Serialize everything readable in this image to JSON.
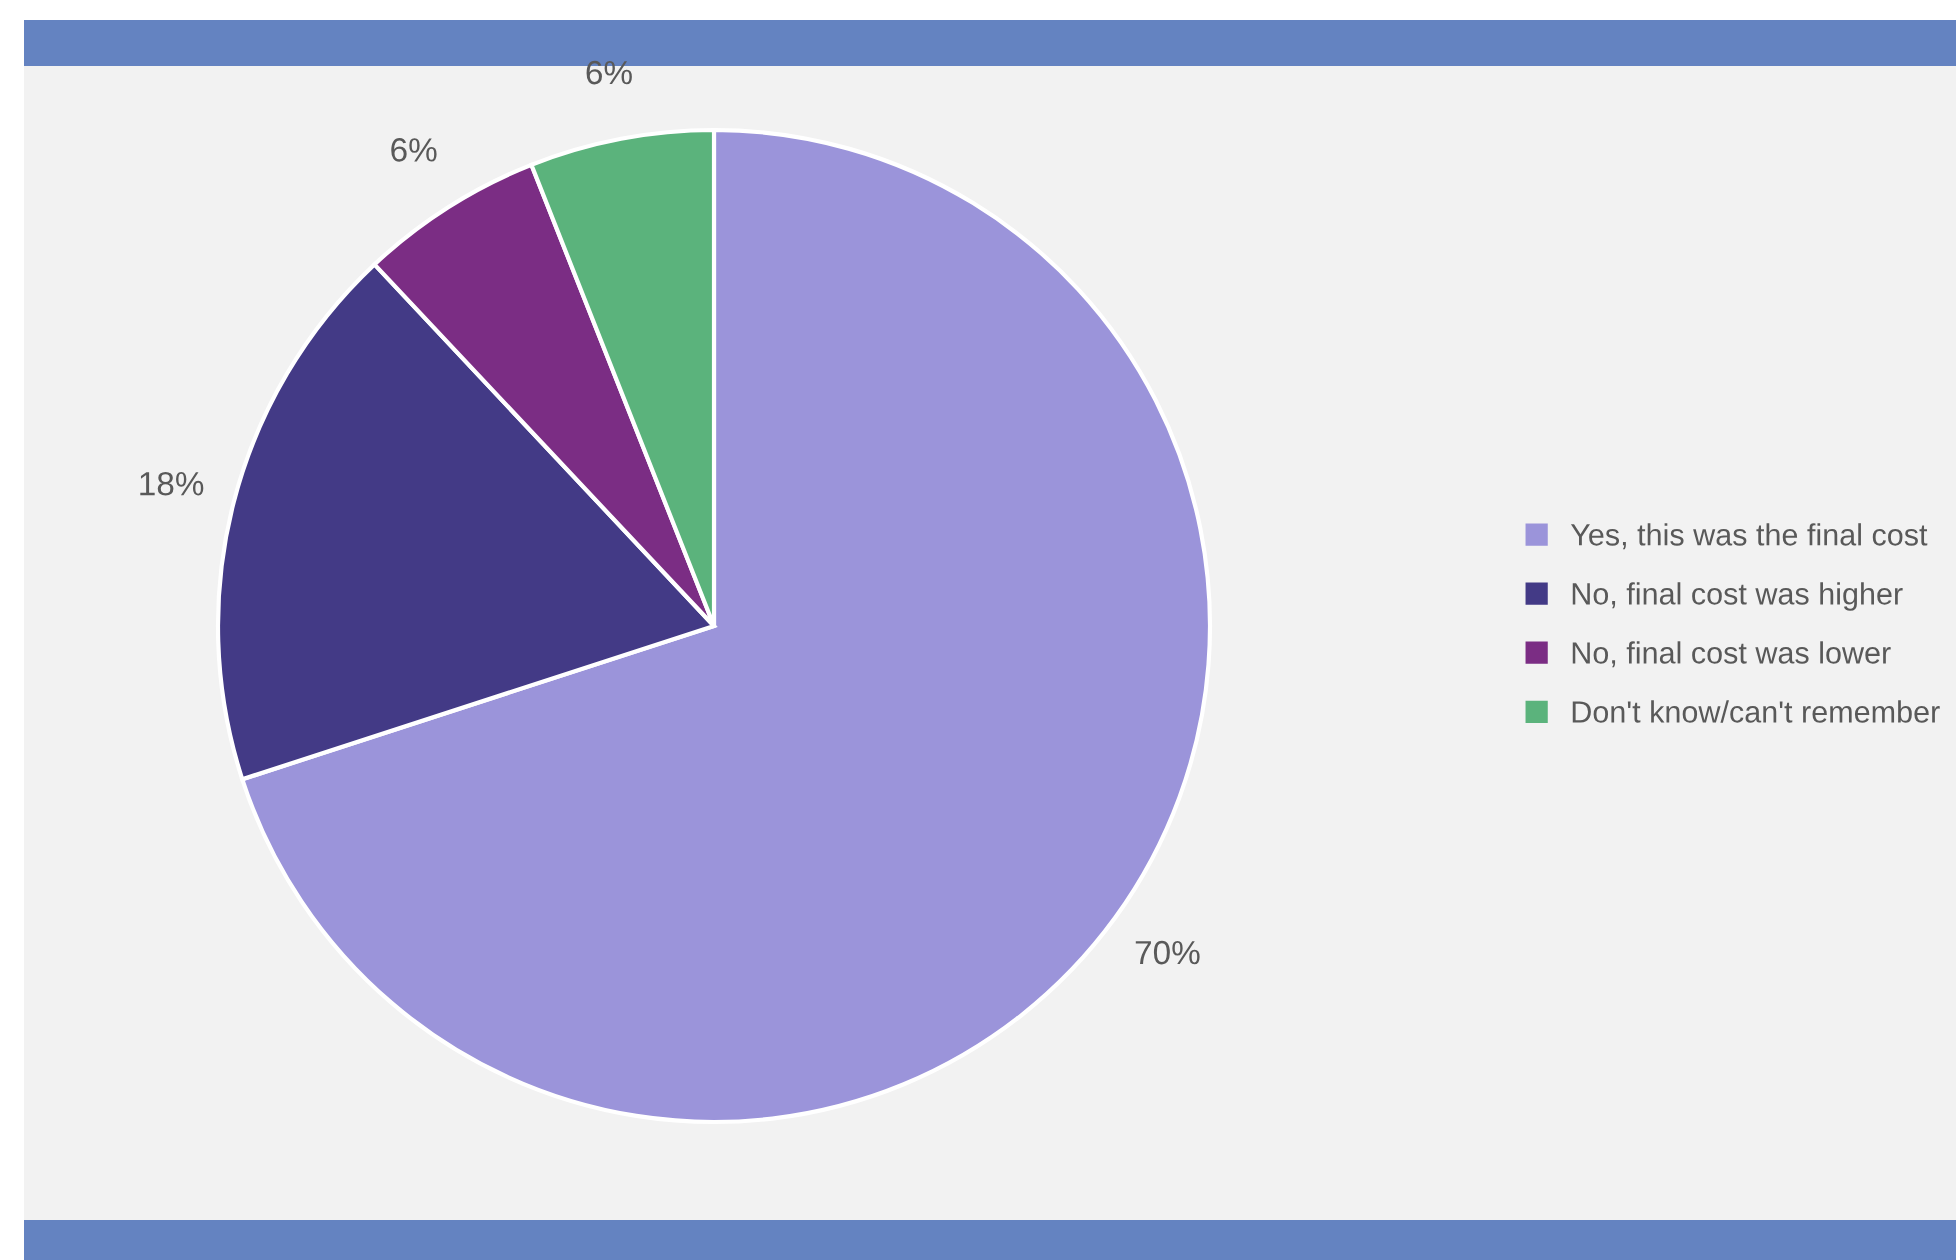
{
  "chart_data": {
    "type": "pie",
    "categories": [
      "Yes, this was the final cost",
      "No, final cost was higher",
      "No, final cost was lower",
      "Don't know/can't remember"
    ],
    "values": [
      70,
      18,
      6,
      6
    ],
    "value_labels": [
      "70%",
      "18%",
      "6%",
      "6%"
    ],
    "colors": [
      "#9b94da",
      "#433a86",
      "#7b2d84",
      "#5bb37c"
    ],
    "legend": "right"
  }
}
